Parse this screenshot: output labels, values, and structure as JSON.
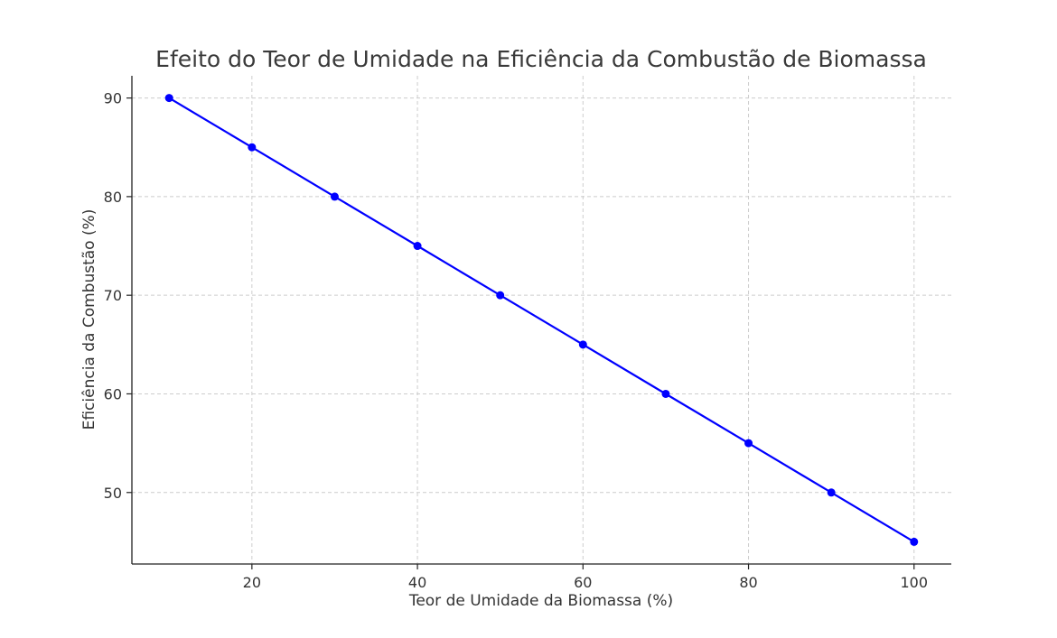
{
  "chart_data": {
    "type": "line",
    "title": "Efeito do Teor de Umidade na Eficiência da Combustão de Biomassa",
    "xlabel": "Teor de Umidade da Biomassa (%)",
    "ylabel": "Eficiência da Combustão (%)",
    "x": [
      10,
      20,
      30,
      40,
      50,
      60,
      70,
      80,
      90,
      100
    ],
    "series": [
      {
        "values": [
          90,
          85,
          80,
          75,
          70,
          65,
          60,
          55,
          50,
          45
        ],
        "color": "#0000ff",
        "marker": "circle"
      }
    ],
    "xlim": [
      5.5,
      104.5
    ],
    "ylim": [
      42.75,
      92.25
    ],
    "xticks": [
      20,
      40,
      60,
      80,
      100
    ],
    "yticks": [
      50,
      60,
      70,
      80,
      90
    ],
    "grid": true,
    "legend": false
  }
}
